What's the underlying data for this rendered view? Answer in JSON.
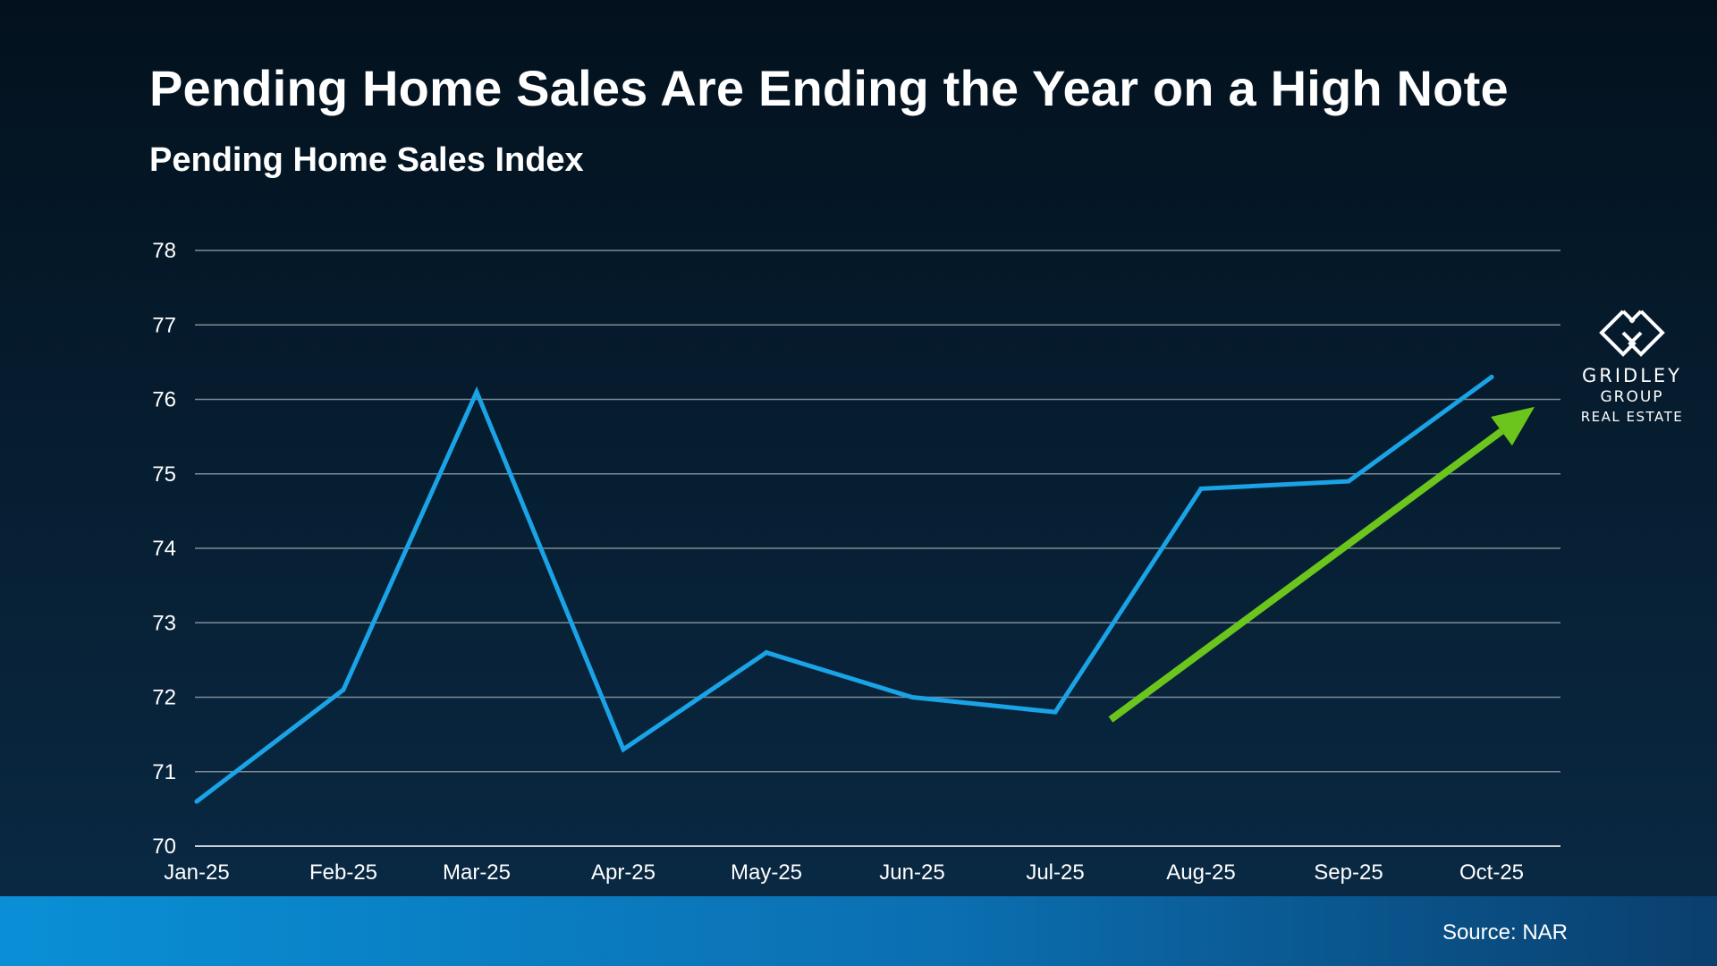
{
  "title": "Pending Home Sales Are Ending the Year on a High Note",
  "subtitle": "Pending Home Sales Index",
  "source": "Source: NAR",
  "logo": {
    "line1": "GRIDLEY",
    "line2": "GROUP",
    "line3": "REAL ESTATE"
  },
  "colors": {
    "line": "#1aa3e6",
    "arrow": "#6cc51d",
    "grid": "#7e8b97",
    "footer": "#0a8fd6"
  },
  "chart_data": {
    "type": "line",
    "title": "Pending Home Sales Index",
    "xlabel": "",
    "ylabel": "",
    "categories": [
      "Jan-25",
      "Feb-25",
      "Mar-25",
      "Apr-25",
      "May-25",
      "Jun-25",
      "Jul-25",
      "Aug-25",
      "Sep-25",
      "Oct-25"
    ],
    "series": [
      {
        "name": "Pending Home Sales Index",
        "values": [
          70.6,
          72.1,
          76.1,
          71.3,
          72.6,
          72.0,
          71.8,
          74.8,
          74.9,
          76.3
        ]
      }
    ],
    "ylim": [
      70,
      78
    ],
    "yticks": [
      70,
      71,
      72,
      73,
      74,
      75,
      76,
      77,
      78
    ],
    "grid": true,
    "legend": "none",
    "annotations": [
      {
        "type": "trend-arrow",
        "from": {
          "x": "Jul-25",
          "y": 71.7
        },
        "to": {
          "x": "Oct-25",
          "y": 75.9
        }
      }
    ]
  }
}
